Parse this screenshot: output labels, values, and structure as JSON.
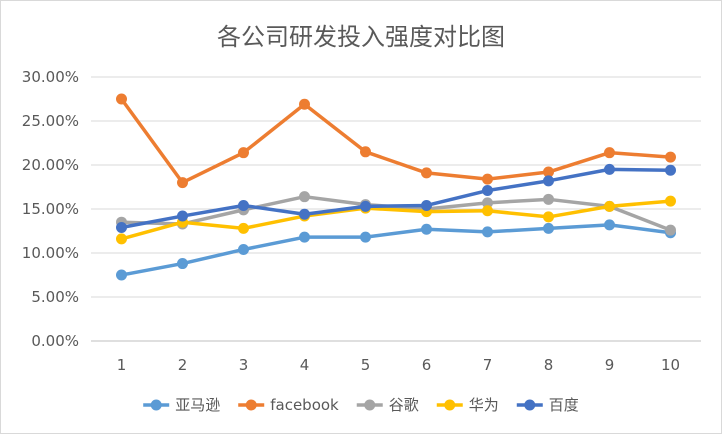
{
  "chart_data": {
    "type": "line",
    "title": "各公司研发投入强度对比图",
    "xlabel": "",
    "ylabel": "",
    "x": [
      "1",
      "2",
      "3",
      "4",
      "5",
      "6",
      "7",
      "8",
      "9",
      "10"
    ],
    "ylim": [
      0,
      0.3
    ],
    "yticks": [
      "0.00%",
      "5.00%",
      "10.00%",
      "15.00%",
      "20.00%",
      "25.00%",
      "30.00%"
    ],
    "grid": true,
    "legend_position": "bottom",
    "series": [
      {
        "name": "亚马逊",
        "color": "#5b9bd5",
        "values": [
          0.075,
          0.088,
          0.104,
          0.118,
          0.118,
          0.127,
          0.124,
          0.128,
          0.132,
          0.123
        ]
      },
      {
        "name": "facebook",
        "color": "#ed7d31",
        "values": [
          0.275,
          0.18,
          0.214,
          0.269,
          0.215,
          0.191,
          0.184,
          0.192,
          0.214,
          0.209
        ]
      },
      {
        "name": "谷歌",
        "color": "#a5a5a5",
        "values": [
          0.135,
          0.133,
          0.149,
          0.164,
          0.155,
          0.15,
          0.157,
          0.161,
          0.153,
          0.126
        ]
      },
      {
        "name": "华为",
        "color": "#ffc000",
        "values": [
          0.116,
          0.135,
          0.128,
          0.142,
          0.151,
          0.147,
          0.148,
          0.141,
          0.153,
          0.159
        ]
      },
      {
        "name": "百度",
        "color": "#4472c4",
        "values": [
          0.129,
          0.142,
          0.154,
          0.144,
          0.153,
          0.154,
          0.171,
          0.182,
          0.195,
          0.194
        ]
      }
    ]
  }
}
